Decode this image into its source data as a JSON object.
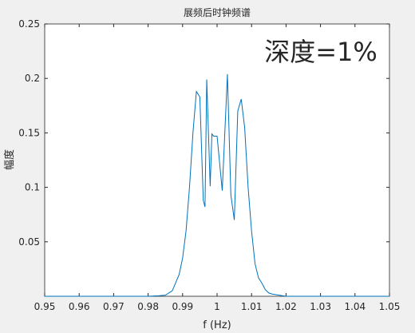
{
  "chart_data": {
    "type": "line",
    "title": "展频后时钟频谱",
    "xlabel": "f (Hz)",
    "ylabel": "幅度",
    "annotation": "深度=1%",
    "annotation_color": "#ff2a1a",
    "x": [
      0.95,
      0.96,
      0.97,
      0.98,
      0.983,
      0.985,
      0.987,
      0.989,
      0.99,
      0.991,
      0.992,
      0.993,
      0.994,
      0.995,
      0.996,
      0.9965,
      0.997,
      0.998,
      0.9985,
      0.999,
      1.0,
      1.0015,
      1.003,
      1.004,
      1.005,
      1.006,
      1.007,
      1.008,
      1.009,
      1.01,
      1.011,
      1.012,
      1.013,
      1.014,
      1.015,
      1.016,
      1.018,
      1.02,
      1.03,
      1.04,
      1.05
    ],
    "series": [
      {
        "color": "#0072bd",
        "values": [
          0,
          0,
          0,
          0,
          0.0005,
          0.001,
          0.005,
          0.02,
          0.035,
          0.06,
          0.1,
          0.15,
          0.188,
          0.183,
          0.088,
          0.082,
          0.199,
          0.101,
          0.149,
          0.147,
          0.147,
          0.097,
          0.204,
          0.093,
          0.07,
          0.17,
          0.181,
          0.155,
          0.1,
          0.06,
          0.03,
          0.017,
          0.012,
          0.006,
          0.003,
          0.002,
          0.001,
          0,
          0,
          0,
          0
        ]
      }
    ],
    "xlim": [
      0.95,
      1.05
    ],
    "ylim": [
      0,
      0.25
    ],
    "xticks": [
      0.95,
      0.96,
      0.97,
      0.98,
      0.99,
      1,
      1.01,
      1.02,
      1.03,
      1.04,
      1.05
    ],
    "yticks": [
      0.05,
      0.1,
      0.15,
      0.2,
      0.25
    ],
    "grid": false
  }
}
